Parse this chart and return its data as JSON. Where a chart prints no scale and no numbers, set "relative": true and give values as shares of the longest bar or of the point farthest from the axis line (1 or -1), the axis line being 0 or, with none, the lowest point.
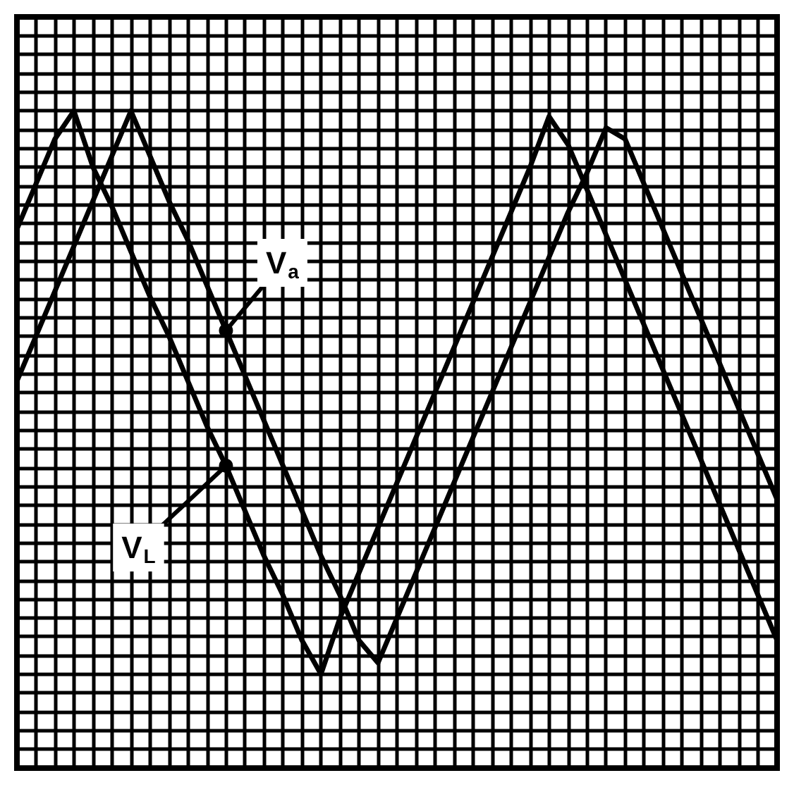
{
  "chart_data": {
    "type": "line",
    "relative": true,
    "grid": true,
    "marker": "none",
    "line_style": "solid",
    "categories": [
      null,
      null,
      null,
      null,
      null,
      null,
      null,
      null,
      null,
      null,
      null,
      null,
      null,
      null,
      null,
      null,
      null,
      null,
      null,
      null,
      null,
      null,
      null,
      null,
      null,
      null,
      null,
      null,
      null,
      null,
      null,
      null,
      null,
      null,
      null,
      null,
      null,
      null,
      null,
      null,
      null
    ],
    "series": [
      {
        "name": "V$_{L}$",
        "color": "#000000",
        "values": [
          0.79,
          0.87,
          0.95,
          1.0,
          0.9,
          0.83,
          0.75,
          0.67,
          0.6,
          0.52,
          0.44,
          0.37,
          0.29,
          0.21,
          0.14,
          0.06,
          0.0,
          0.1,
          0.18,
          0.26,
          0.34,
          0.42,
          0.5,
          0.58,
          0.66,
          0.74,
          0.82,
          0.9,
          0.99,
          0.94,
          0.86,
          0.78,
          0.7,
          0.62,
          0.54,
          0.46,
          0.38,
          0.3,
          0.22,
          0.14,
          0.06
        ]
      },
      {
        "name": "V$_{a}$",
        "color": "#000000",
        "values": [
          0.52,
          0.6,
          0.68,
          0.76,
          0.84,
          0.92,
          1.0,
          0.92,
          0.84,
          0.77,
          0.69,
          0.61,
          0.53,
          0.45,
          0.37,
          0.29,
          0.21,
          0.14,
          0.06,
          0.02,
          0.1,
          0.18,
          0.26,
          0.34,
          0.42,
          0.5,
          0.58,
          0.66,
          0.74,
          0.82,
          0.89,
          0.97,
          0.95,
          0.87,
          0.79,
          0.71,
          0.63,
          0.55,
          0.47,
          0.39,
          0.31
        ]
      }
    ]
  }
}
